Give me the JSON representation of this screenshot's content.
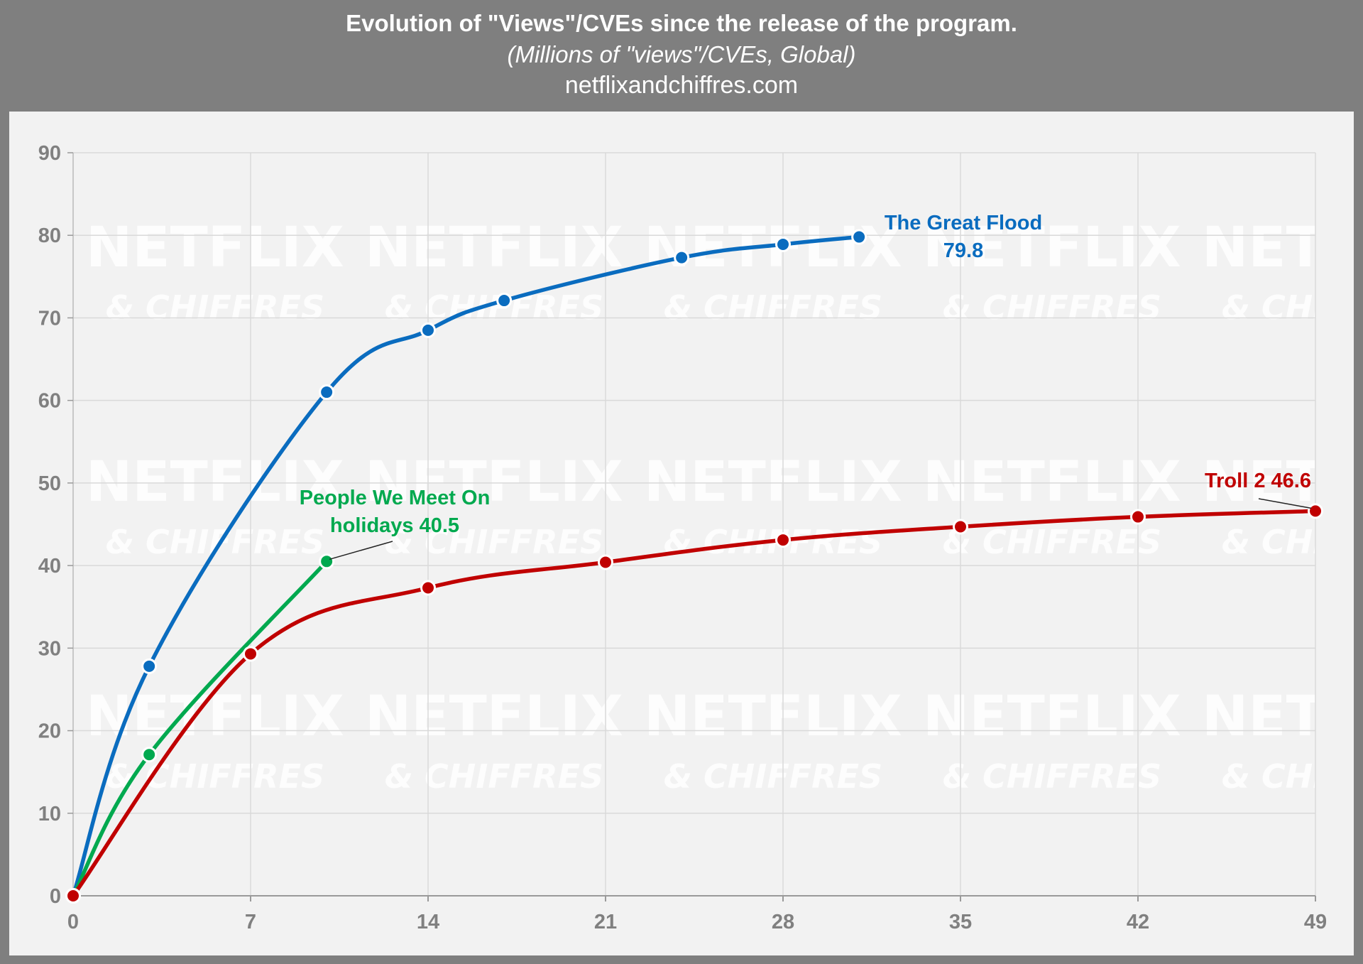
{
  "header": {
    "title": "Evolution of \"Views\"/CVEs since the release of the program.",
    "subtitle": "(Millions of \"views\"/CVEs, Global)",
    "source": "netflixandchiffres.com"
  },
  "watermark": {
    "line1": "NETFLIX",
    "line2": "& CHIFFRES"
  },
  "colors": {
    "background": "#7f7f7f",
    "panel": "#f2f2f2",
    "grid": "#d9d9d9",
    "axis_text": "#808080",
    "series": [
      "#0a6cbf",
      "#00a94f",
      "#c00000"
    ]
  },
  "chart_data": {
    "type": "line",
    "title": "Evolution of \"Views\"/CVEs since the release of the program.",
    "subtitle": "(Millions of \"views\"/CVEs, Global)",
    "xlabel": "",
    "ylabel": "",
    "xlim": [
      0,
      49
    ],
    "ylim": [
      0,
      90
    ],
    "xticks": [
      0,
      7,
      14,
      21,
      28,
      35,
      42,
      49
    ],
    "yticks": [
      0,
      10,
      20,
      30,
      40,
      50,
      60,
      70,
      80,
      90
    ],
    "grid": true,
    "series": [
      {
        "name": "The Great Flood",
        "color": "#0a6cbf",
        "points": [
          [
            0,
            0
          ],
          [
            3,
            27.8
          ],
          [
            10,
            61
          ],
          [
            14,
            68.5
          ],
          [
            17,
            72.1
          ],
          [
            24,
            77.3
          ],
          [
            28,
            78.9
          ],
          [
            31,
            79.8
          ]
        ],
        "label_line1": "The Great Flood",
        "label_line2": "79.8",
        "final_value": 79.8
      },
      {
        "name": "People We Meet On holidays",
        "color": "#00a94f",
        "points": [
          [
            0,
            0
          ],
          [
            3,
            17.1
          ],
          [
            10,
            40.5
          ]
        ],
        "label_line1": "People We Meet On",
        "label_line2": "holidays 40.5",
        "final_value": 40.5
      },
      {
        "name": "Troll 2",
        "color": "#c00000",
        "points": [
          [
            0,
            0
          ],
          [
            7,
            29.3
          ],
          [
            14,
            37.3
          ],
          [
            21,
            40.4
          ],
          [
            28,
            43.1
          ],
          [
            35,
            44.7
          ],
          [
            42,
            45.9
          ],
          [
            49,
            46.6
          ]
        ],
        "label_line1": "Troll 2 46.6",
        "final_value": 46.6
      }
    ]
  }
}
